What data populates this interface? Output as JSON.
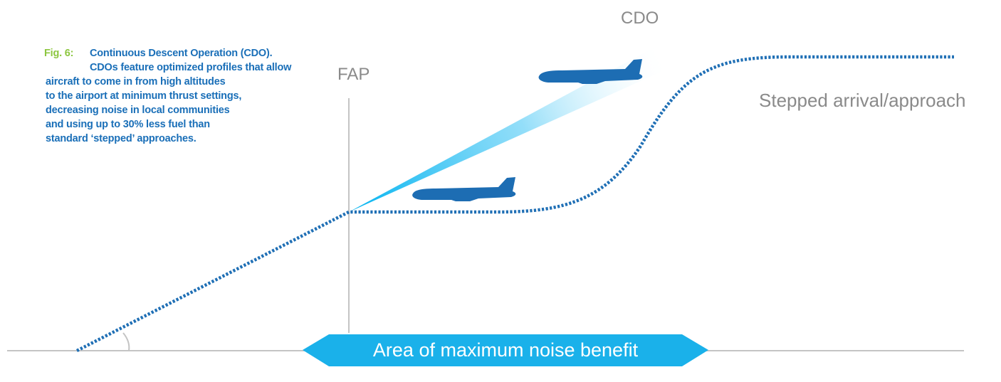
{
  "caption": {
    "fig_label": "Fig. 6:",
    "text_first": "Continuous Descent Operation (CDO).",
    "text_lines": [
      "CDOs feature optimized profiles that allow",
      "aircraft to come in from high altitudes",
      "to the airport at minimum thrust settings,",
      "decreasing noise in local communities",
      "and using up to 30% less fuel than",
      "standard ‘stepped’ approaches."
    ]
  },
  "labels": {
    "fap": "FAP",
    "cdo": "CDO",
    "stepped": "Stepped arrival/approach"
  },
  "band": {
    "label": "Area of maximum noise benefit"
  },
  "colors": {
    "caption_text": "#1a6fb8",
    "fig_label": "#8cc63f",
    "path_dots": "#1f6fb5",
    "aircraft": "#1d6db3",
    "band": "#1ab1ea",
    "beam": "#00b3f0",
    "guide_lines": "#c4c4c4",
    "label_text": "#8a8a8a"
  },
  "icons": [
    "aircraft-icon",
    "aircraft-icon"
  ]
}
